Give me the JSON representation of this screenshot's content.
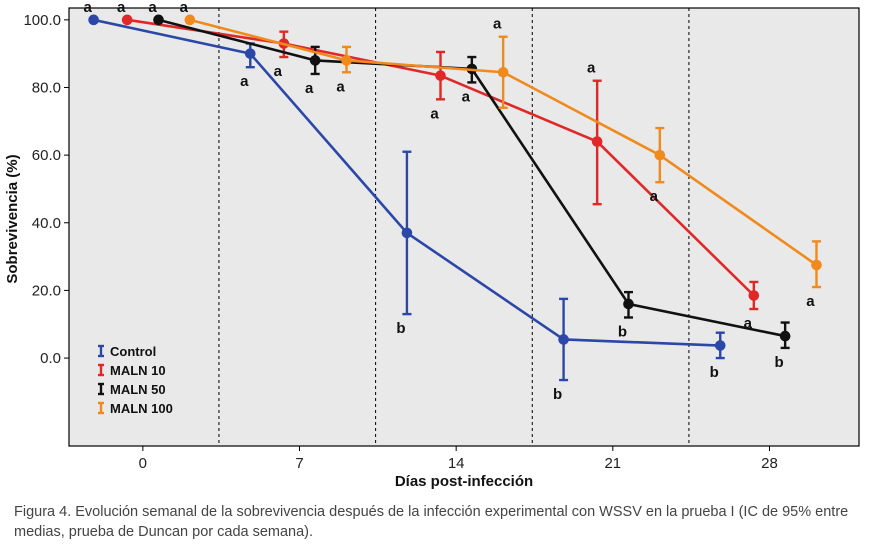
{
  "chart_data": {
    "type": "line",
    "title": "",
    "xlabel": "Días post-infección",
    "ylabel": "Sobrevivencia (%)",
    "x_ticks": [
      0,
      7,
      14,
      21,
      28
    ],
    "y_ticks": [
      "0.0",
      "20.0",
      "40.0",
      "60.0",
      "80.0",
      "100.0"
    ],
    "y_tick_values": [
      0,
      20,
      40,
      60,
      80,
      100
    ],
    "xlim": [
      -3.3,
      32
    ],
    "ylim": [
      -26,
      103.5
    ],
    "week_separators": [
      3.4,
      10.4,
      17.4,
      24.4
    ],
    "series": [
      {
        "name": "Control",
        "color": "#2b47a8",
        "x": [
          -2.2,
          4.8,
          11.8,
          18.8,
          25.8
        ],
        "values": [
          100,
          90,
          37,
          5.5,
          3.7
        ],
        "err_low": [
          100,
          86,
          13,
          -6.5,
          0
        ],
        "err_high": [
          100,
          93,
          61,
          17.5,
          7.5
        ],
        "letters": [
          "a",
          "a",
          "b",
          "b",
          "b"
        ],
        "letter_pos": [
          "above",
          "below",
          "below",
          "below",
          "below"
        ]
      },
      {
        "name": "MALN 10",
        "color": "#e02828",
        "x": [
          -0.7,
          6.3,
          13.3,
          20.3,
          27.3
        ],
        "values": [
          100,
          93,
          83.5,
          64,
          18.5
        ],
        "err_low": [
          100,
          89,
          76.5,
          45.5,
          14.5
        ],
        "err_high": [
          100,
          96.5,
          90.5,
          82,
          22.5
        ],
        "letters": [
          "a",
          "a",
          "a",
          "a",
          "a"
        ],
        "letter_pos": [
          "above",
          "below",
          "below",
          "above",
          "below"
        ]
      },
      {
        "name": "MALN 50",
        "color": "#111111",
        "x": [
          0.7,
          7.7,
          14.7,
          21.7,
          28.7
        ],
        "values": [
          100,
          88,
          85.5,
          16,
          6.5
        ],
        "err_low": [
          100,
          84,
          81.5,
          12,
          3
        ],
        "err_high": [
          100,
          92,
          89,
          19.5,
          10.5
        ],
        "letters": [
          "a",
          "a",
          "a",
          "b",
          "b"
        ],
        "letter_pos": [
          "above",
          "below",
          "below",
          "below",
          "below"
        ]
      },
      {
        "name": "MALN 100",
        "color": "#f08a1c",
        "x": [
          2.1,
          9.1,
          16.1,
          23.1,
          30.1
        ],
        "values": [
          100,
          88,
          84.5,
          60,
          27.5
        ],
        "err_low": [
          100,
          84.5,
          74,
          52,
          21
        ],
        "err_high": [
          100,
          92,
          95,
          68,
          34.5
        ],
        "letters": [
          "a",
          "a",
          "a",
          "a",
          "a"
        ],
        "letter_pos": [
          "above",
          "below",
          "above",
          "below",
          "below"
        ]
      }
    ],
    "legend": [
      "Control",
      "MALN 10",
      "MALN 50",
      "MALN 100"
    ],
    "legend_position": "bottom-left"
  },
  "caption": "Figura 4. Evolución semanal de la sobrevivencia después de la infección experimental con WSSV en la prueba I (IC de 95% entre medias, prueba de Duncan por cada semana).",
  "colors": {
    "plot_background": "#e9e9e9",
    "separator": "#000000"
  }
}
